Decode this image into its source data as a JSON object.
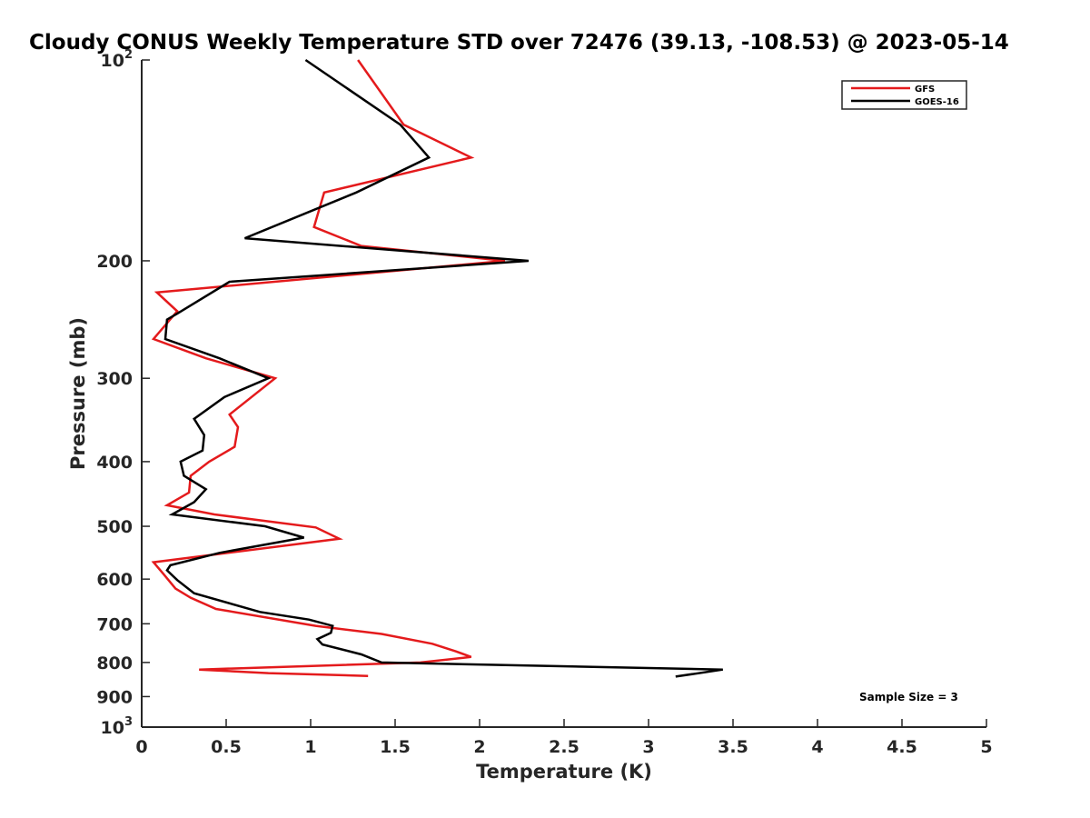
{
  "chart_data": {
    "type": "line",
    "title": "Cloudy CONUS Weekly Temperature STD over 72476 (39.13, -108.53) @ 2023-05-14",
    "xlabel": "Temperature (K)",
    "ylabel": "Pressure (mb)",
    "xlim": [
      0,
      5
    ],
    "ylim": [
      100,
      1000
    ],
    "y_scale": "log",
    "y_reversed": true,
    "x_ticks": [
      "0",
      "0.5",
      "1",
      "1.5",
      "2",
      "2.5",
      "3",
      "3.5",
      "4",
      "4.5",
      "5"
    ],
    "x_tick_values": [
      0,
      0.5,
      1,
      1.5,
      2,
      2.5,
      3,
      3.5,
      4,
      4.5,
      5
    ],
    "y_ticks": [
      {
        "value": 100,
        "base": "10",
        "exp": "2",
        "label": ""
      },
      {
        "value": 200,
        "base": "",
        "exp": "",
        "label": "200"
      },
      {
        "value": 300,
        "base": "",
        "exp": "",
        "label": "300"
      },
      {
        "value": 400,
        "base": "",
        "exp": "",
        "label": "400"
      },
      {
        "value": 500,
        "base": "",
        "exp": "",
        "label": "500"
      },
      {
        "value": 600,
        "base": "",
        "exp": "",
        "label": "600"
      },
      {
        "value": 700,
        "base": "",
        "exp": "",
        "label": "700"
      },
      {
        "value": 800,
        "base": "",
        "exp": "",
        "label": "800"
      },
      {
        "value": 900,
        "base": "",
        "exp": "",
        "label": "900"
      },
      {
        "value": 1000,
        "base": "10",
        "exp": "3",
        "label": ""
      }
    ],
    "grid": false,
    "legend_position": "top-right",
    "annotation": "Sample Size = 3",
    "series": [
      {
        "name": "GFS",
        "color": "#e41a1c",
        "points": [
          {
            "t": 1.28,
            "p": 100
          },
          {
            "t": 1.55,
            "p": 125
          },
          {
            "t": 1.95,
            "p": 140
          },
          {
            "t": 1.08,
            "p": 158
          },
          {
            "t": 1.02,
            "p": 178
          },
          {
            "t": 1.3,
            "p": 190
          },
          {
            "t": 2.15,
            "p": 200
          },
          {
            "t": 0.09,
            "p": 223
          },
          {
            "t": 0.21,
            "p": 238
          },
          {
            "t": 0.07,
            "p": 262
          },
          {
            "t": 0.38,
            "p": 280
          },
          {
            "t": 0.79,
            "p": 300
          },
          {
            "t": 0.52,
            "p": 340
          },
          {
            "t": 0.57,
            "p": 355
          },
          {
            "t": 0.55,
            "p": 380
          },
          {
            "t": 0.4,
            "p": 400
          },
          {
            "t": 0.29,
            "p": 420
          },
          {
            "t": 0.28,
            "p": 445
          },
          {
            "t": 0.15,
            "p": 465
          },
          {
            "t": 0.43,
            "p": 480
          },
          {
            "t": 1.03,
            "p": 502
          },
          {
            "t": 1.17,
            "p": 522
          },
          {
            "t": 0.07,
            "p": 566
          },
          {
            "t": 0.13,
            "p": 590
          },
          {
            "t": 0.2,
            "p": 620
          },
          {
            "t": 0.29,
            "p": 640
          },
          {
            "t": 0.44,
            "p": 665
          },
          {
            "t": 1.03,
            "p": 705
          },
          {
            "t": 1.42,
            "p": 725
          },
          {
            "t": 1.72,
            "p": 750
          },
          {
            "t": 1.86,
            "p": 770
          },
          {
            "t": 1.95,
            "p": 785
          },
          {
            "t": 1.65,
            "p": 800
          },
          {
            "t": 0.34,
            "p": 820
          },
          {
            "t": 0.75,
            "p": 830
          },
          {
            "t": 1.34,
            "p": 838
          }
        ]
      },
      {
        "name": "GOES-16",
        "color": "#000000",
        "points": [
          {
            "t": 0.97,
            "p": 100
          },
          {
            "t": 1.53,
            "p": 125
          },
          {
            "t": 1.7,
            "p": 140
          },
          {
            "t": 1.27,
            "p": 158
          },
          {
            "t": 0.61,
            "p": 185
          },
          {
            "t": 2.29,
            "p": 200
          },
          {
            "t": 0.52,
            "p": 215
          },
          {
            "t": 0.21,
            "p": 240
          },
          {
            "t": 0.15,
            "p": 245
          },
          {
            "t": 0.14,
            "p": 262
          },
          {
            "t": 0.46,
            "p": 280
          },
          {
            "t": 0.75,
            "p": 300
          },
          {
            "t": 0.49,
            "p": 320
          },
          {
            "t": 0.31,
            "p": 345
          },
          {
            "t": 0.37,
            "p": 365
          },
          {
            "t": 0.36,
            "p": 385
          },
          {
            "t": 0.23,
            "p": 400
          },
          {
            "t": 0.25,
            "p": 420
          },
          {
            "t": 0.38,
            "p": 440
          },
          {
            "t": 0.31,
            "p": 460
          },
          {
            "t": 0.18,
            "p": 480
          },
          {
            "t": 0.73,
            "p": 500
          },
          {
            "t": 0.96,
            "p": 520
          },
          {
            "t": 0.46,
            "p": 548
          },
          {
            "t": 0.17,
            "p": 572
          },
          {
            "t": 0.15,
            "p": 582
          },
          {
            "t": 0.21,
            "p": 602
          },
          {
            "t": 0.31,
            "p": 630
          },
          {
            "t": 0.7,
            "p": 672
          },
          {
            "t": 0.99,
            "p": 690
          },
          {
            "t": 1.13,
            "p": 705
          },
          {
            "t": 1.12,
            "p": 722
          },
          {
            "t": 1.04,
            "p": 738
          },
          {
            "t": 1.07,
            "p": 752
          },
          {
            "t": 1.3,
            "p": 778
          },
          {
            "t": 1.42,
            "p": 800
          },
          {
            "t": 3.44,
            "p": 820
          },
          {
            "t": 3.16,
            "p": 840
          }
        ]
      }
    ]
  }
}
